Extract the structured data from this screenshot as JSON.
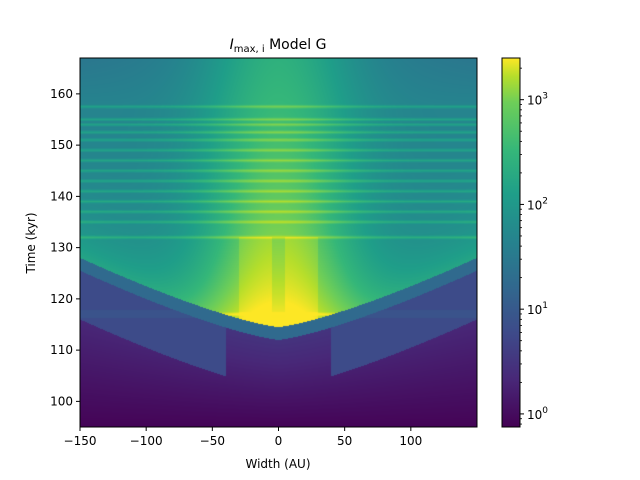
{
  "chart_data": {
    "type": "heatmap",
    "title": "I_max,i Model G",
    "title_parts": {
      "symbol": "I",
      "subscript": "max, i",
      "suffix": " Model G"
    },
    "xlabel": "Width (AU)",
    "ylabel": "Time (kyr)",
    "xlim": [
      -150,
      150
    ],
    "ylim": [
      95,
      167
    ],
    "xticks": [
      -150,
      -100,
      -50,
      0,
      50,
      100
    ],
    "xtick_labels": [
      "−150",
      "−100",
      "−50",
      "0",
      "50",
      "100"
    ],
    "yticks": [
      100,
      110,
      120,
      130,
      140,
      150,
      160
    ],
    "ytick_labels": [
      "100",
      "110",
      "120",
      "130",
      "140",
      "150",
      "160"
    ],
    "colormap": "viridis",
    "colorbar": {
      "scale": "log",
      "range": [
        0.75,
        2500
      ],
      "major_ticks": [
        1,
        10,
        100,
        1000
      ],
      "major_tick_labels": [
        "10^0",
        "10^1",
        "10^2",
        "10^3"
      ]
    },
    "structure": {
      "onset_time_center": 114.5,
      "onset_time_edge": 128,
      "band_times": [
        117,
        132,
        135,
        137,
        139,
        141,
        143,
        145,
        147,
        149,
        151,
        152.5,
        154,
        155,
        157.5
      ],
      "peak_value_approx": 2000,
      "background_value_min": 0.8,
      "background_value_pre_onset": 3,
      "halo_value": 6
    }
  }
}
